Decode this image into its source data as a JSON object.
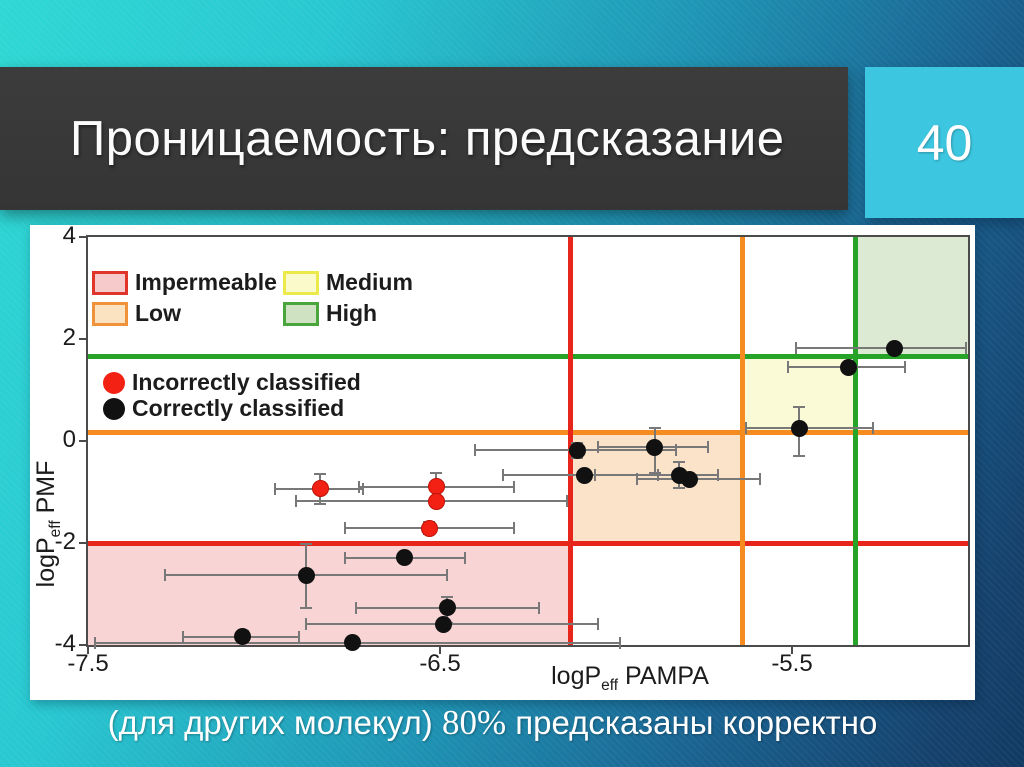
{
  "slide": {
    "title": "Проницаемость: предсказание",
    "page_number": "40",
    "caption_prefix": "(для других молекул) ",
    "caption_percent": "80%",
    "caption_suffix": " предсказаны корректно",
    "accent_cyan": "#3dc6e0",
    "title_bar_color": "#383838"
  },
  "chart_data": {
    "type": "scatter",
    "xlabel_base": "logP",
    "xlabel_sub": "eff",
    "xlabel_rest": " PAMPA",
    "ylabel_base": "logP",
    "ylabel_sub": "eff",
    "ylabel_rest": " PMF",
    "xlim": [
      -7.5,
      -5.0
    ],
    "ylim": [
      -4,
      4
    ],
    "xticks": [
      "-7.5",
      "-6.5",
      "-5.5"
    ],
    "xtick_values": [
      -7.5,
      -6.5,
      -5.5
    ],
    "yticks": [
      "4",
      "2",
      "0",
      "-2",
      "-4"
    ],
    "ytick_values": [
      4,
      2,
      0,
      -2,
      -4
    ],
    "grid": false,
    "legend_position": "upper-left-inside",
    "threshold_lines": {
      "vertical": [
        {
          "name": "red",
          "x": -6.13,
          "color": "#e8251a"
        },
        {
          "name": "orange",
          "x": -5.64,
          "color": "#f68b1f"
        },
        {
          "name": "green",
          "x": -5.32,
          "color": "#27a327"
        }
      ],
      "horizontal": [
        {
          "name": "green",
          "y": 1.65,
          "color": "#27a327"
        },
        {
          "name": "orange",
          "y": 0.16,
          "color": "#f68b1f"
        },
        {
          "name": "red",
          "y": -2.0,
          "color": "#e8251a"
        }
      ]
    },
    "regions": [
      {
        "label": "Impermeable",
        "x": [
          -7.5,
          -6.13
        ],
        "y": [
          -4,
          -2.0
        ],
        "fill": "#f8d5d4"
      },
      {
        "label": "Low",
        "x": [
          -6.13,
          -5.64
        ],
        "y": [
          -2.0,
          0.16
        ],
        "fill": "#fae3c9"
      },
      {
        "label": "Medium",
        "x": [
          -5.64,
          -5.32
        ],
        "y": [
          0.16,
          1.65
        ],
        "fill": "#fbfad6"
      },
      {
        "label": "High",
        "x": [
          -5.32,
          -5.0
        ],
        "y": [
          1.65,
          4
        ],
        "fill": "#dcead3"
      }
    ],
    "region_legend": [
      {
        "label": "Impermeable",
        "fill": "#f6caca",
        "border": "#e0352b"
      },
      {
        "label": "Low",
        "fill": "#fbe2c0",
        "border": "#f0923a"
      },
      {
        "label": "Medium",
        "fill": "#fbfacb",
        "border": "#ecea4a"
      },
      {
        "label": "High",
        "fill": "#cfe2c2",
        "border": "#4aa53c"
      }
    ],
    "marker_legend": [
      {
        "label": "Incorrectly classified",
        "color": "#f32114"
      },
      {
        "label": "Correctly classified",
        "color": "#111111"
      }
    ],
    "series": [
      {
        "name": "Correctly classified",
        "color": "#111111",
        "points": [
          {
            "x": -5.21,
            "y": 1.82,
            "xerr": [
              0.28,
              0.22
            ]
          },
          {
            "x": -5.34,
            "y": 1.45,
            "xerr": [
              0.17,
              0.16
            ]
          },
          {
            "x": -5.48,
            "y": 0.25,
            "xerr": [
              0.15,
              0.21
            ],
            "yerr": [
              0.55,
              0.42
            ]
          },
          {
            "x": -6.11,
            "y": -0.18,
            "xerr": [
              0.29,
              0.28
            ],
            "yerr": [
              0.15,
              0.15
            ]
          },
          {
            "x": -5.89,
            "y": -0.12,
            "xerr": [
              0.16,
              0.15
            ],
            "yerr": [
              0.5,
              0.37
            ]
          },
          {
            "x": -6.09,
            "y": -0.67,
            "xerr": [
              0.23,
              0.21
            ]
          },
          {
            "x": -5.82,
            "y": -0.67,
            "xerr": [
              0.24,
              0.11
            ],
            "yerr": [
              0.25,
              0.25
            ]
          },
          {
            "x": -5.79,
            "y": -0.75,
            "xerr": [
              0.15,
              0.2
            ]
          },
          {
            "x": -6.6,
            "y": -2.29,
            "xerr": [
              0.17,
              0.17
            ]
          },
          {
            "x": -6.88,
            "y": -2.63,
            "xerr": [
              0.4,
              0.4
            ],
            "yerr": [
              0.65,
              0.62
            ]
          },
          {
            "x": -6.48,
            "y": -3.27,
            "xerr": [
              0.26,
              0.26
            ],
            "yerr": [
              0.29,
              0.22
            ]
          },
          {
            "x": -6.49,
            "y": -3.59,
            "xerr": [
              0.39,
              0.44
            ]
          },
          {
            "x": -7.06,
            "y": -3.84,
            "xerr": [
              0.17,
              0.16
            ],
            "yerr": [
              0.12,
              0.12
            ]
          },
          {
            "x": -6.75,
            "y": -3.96,
            "xerr": [
              0.73,
              0.76
            ],
            "yerr": [
              0.1,
              0.1
            ]
          }
        ]
      },
      {
        "name": "Incorrectly classified",
        "color": "#f32114",
        "points": [
          {
            "x": -6.84,
            "y": -0.94,
            "xerr": [
              0.13,
              0.12
            ],
            "yerr": [
              0.3,
              0.3
            ]
          },
          {
            "x": -6.51,
            "y": -0.9,
            "xerr": [
              0.22,
              0.22
            ],
            "yerr": [
              0.27,
              0.27
            ]
          },
          {
            "x": -6.51,
            "y": -1.18,
            "xerr": [
              0.4,
              0.37
            ]
          },
          {
            "x": -6.53,
            "y": -1.71,
            "xerr": [
              0.24,
              0.24
            ],
            "yerr": [
              0.12,
              0.12
            ]
          }
        ]
      }
    ]
  }
}
